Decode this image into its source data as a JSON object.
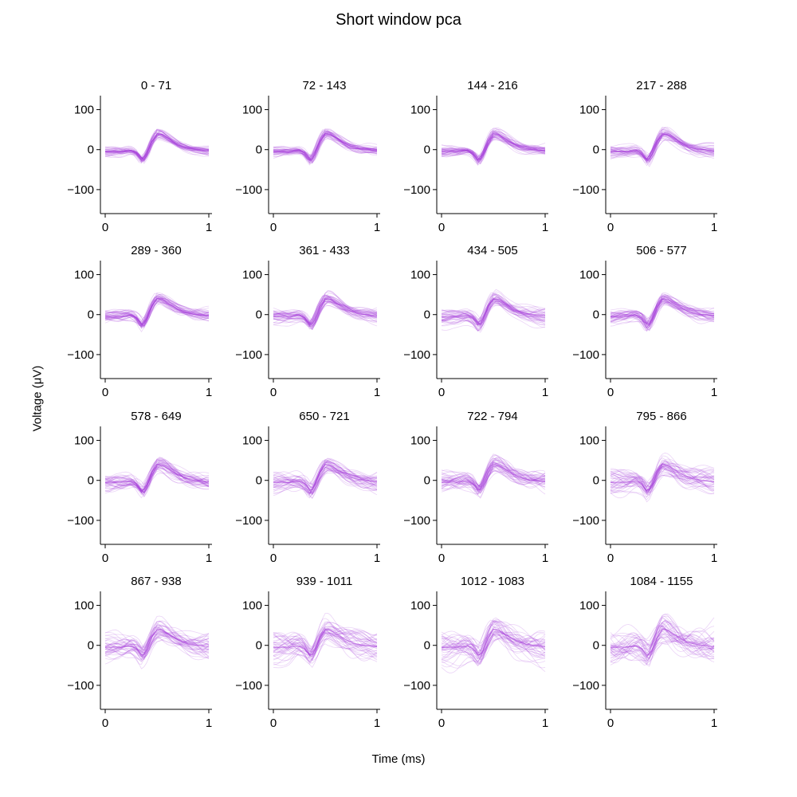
{
  "figure": {
    "title": "Short window pca",
    "xlabel": "Time (ms)",
    "ylabel": "Voltage (μV)"
  },
  "colors": {
    "trace": "#a63dd9",
    "axis": "#000000"
  },
  "chart_data": {
    "type": "line",
    "grid": false,
    "x_range": [
      0,
      1
    ],
    "y_range": [
      -160,
      135
    ],
    "x_ticks": [
      0,
      1
    ],
    "y_ticks": [
      100,
      0,
      -100
    ],
    "panel_titles": [
      "0 - 71",
      "72 - 143",
      "144 - 216",
      "217 - 288",
      "289 - 360",
      "361 - 433",
      "434 - 505",
      "506 - 577",
      "578 - 649",
      "650 - 721",
      "722 - 794",
      "795 - 866",
      "867 - 938",
      "939 - 1011",
      "1012 - 1083",
      "1084 - 1155"
    ],
    "mean_waveform": {
      "x": [
        0,
        0.05,
        0.1,
        0.15,
        0.2,
        0.25,
        0.3,
        0.33,
        0.36,
        0.4,
        0.45,
        0.5,
        0.55,
        0.6,
        0.65,
        0.7,
        0.75,
        0.8,
        0.85,
        0.9,
        0.95,
        1.0
      ],
      "y": [
        -5,
        -5,
        -4,
        -5,
        -3,
        -2,
        -8,
        -18,
        -28,
        -12,
        20,
        40,
        38,
        30,
        22,
        14,
        8,
        4,
        1,
        0,
        -2,
        -3
      ]
    },
    "traces_per_panel": 40,
    "trace_spread_uv": [
      8,
      9,
      10,
      11,
      12,
      13,
      14,
      15,
      16,
      18,
      20,
      22,
      24,
      27,
      30,
      34
    ]
  }
}
